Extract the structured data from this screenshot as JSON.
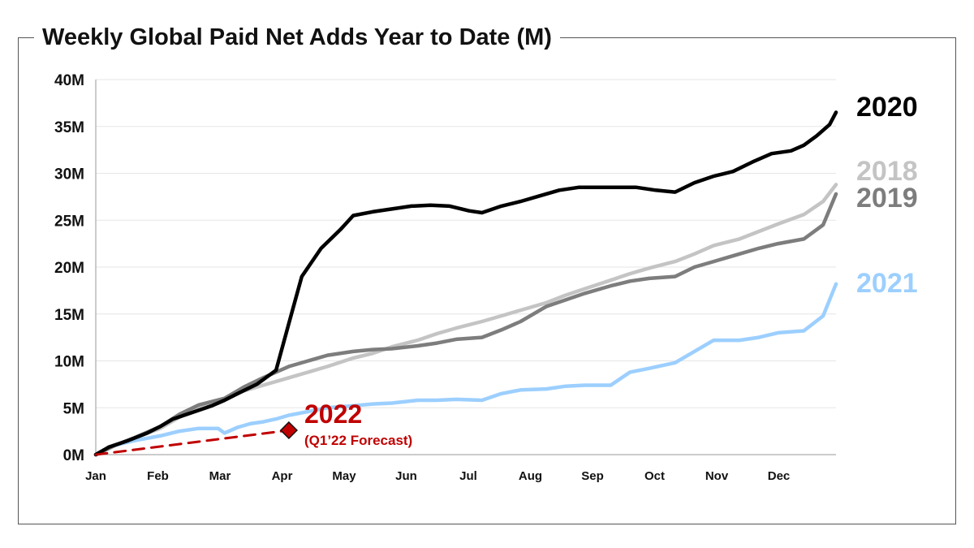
{
  "chart_data": {
    "type": "line",
    "title": "Weekly Global Paid Net Adds Year to Date (M)",
    "xlabel": "",
    "ylabel": "",
    "x_categories": [
      "Jan",
      "Feb",
      "Mar",
      "Apr",
      "May",
      "Jun",
      "Jul",
      "Aug",
      "Sep",
      "Oct",
      "Nov",
      "Dec"
    ],
    "y_ticks": [
      "0M",
      "5M",
      "10M",
      "15M",
      "20M",
      "25M",
      "30M",
      "35M",
      "40M"
    ],
    "ylim": [
      0,
      40
    ],
    "grid": true,
    "series": [
      {
        "name": "2020",
        "color": "#000000",
        "x": [
          0,
          0.2,
          0.5,
          0.8,
          1,
          1.2,
          1.5,
          1.8,
          2,
          2.2,
          2.5,
          2.8,
          3,
          3.2,
          3.5,
          3.8,
          4,
          4.3,
          4.6,
          4.9,
          5.2,
          5.5,
          5.8,
          6,
          6.3,
          6.6,
          6.9,
          7.2,
          7.5,
          7.8,
          8.1,
          8.4,
          8.7,
          9,
          9.3,
          9.6,
          9.9,
          10.2,
          10.5,
          10.8,
          11,
          11.2,
          11.4,
          11.5
        ],
        "y": [
          0,
          0.8,
          1.5,
          2.3,
          3,
          3.8,
          4.5,
          5.2,
          5.8,
          6.5,
          7.5,
          9,
          14,
          19,
          22,
          24,
          25.5,
          25.9,
          26.2,
          26.5,
          26.6,
          26.5,
          26,
          25.8,
          26.5,
          27,
          27.6,
          28.2,
          28.5,
          28.5,
          28.5,
          28.5,
          28.2,
          28,
          29,
          29.7,
          30.2,
          31.2,
          32.1,
          32.4,
          33,
          34,
          35.2,
          36.5
        ]
      },
      {
        "name": "2018",
        "color": "#c4c4c4",
        "x": [
          0,
          0.3,
          0.6,
          1,
          1.3,
          1.6,
          2,
          2.3,
          2.6,
          3,
          3.3,
          3.6,
          4,
          4.3,
          4.6,
          5,
          5.3,
          5.6,
          6,
          6.3,
          6.6,
          7,
          7.3,
          7.6,
          8,
          8.3,
          8.6,
          9,
          9.3,
          9.6,
          10,
          10.3,
          10.6,
          11,
          11.3,
          11.5
        ],
        "y": [
          0,
          1,
          1.8,
          2.8,
          4,
          5,
          5.8,
          6.8,
          7.4,
          8.2,
          8.8,
          9.4,
          10.3,
          10.8,
          11.5,
          12.2,
          12.9,
          13.5,
          14.2,
          14.8,
          15.4,
          16.2,
          17,
          17.7,
          18.6,
          19.3,
          19.9,
          20.6,
          21.4,
          22.3,
          23,
          23.8,
          24.6,
          25.6,
          27,
          28.8
        ]
      },
      {
        "name": "2019",
        "color": "#7d7d7d",
        "x": [
          0,
          0.3,
          0.6,
          1,
          1.3,
          1.6,
          2,
          2.3,
          2.6,
          3,
          3.3,
          3.6,
          4,
          4.3,
          4.6,
          5,
          5.3,
          5.6,
          6,
          6.3,
          6.6,
          7,
          7.3,
          7.6,
          8,
          8.3,
          8.6,
          9,
          9.3,
          9.6,
          10,
          10.3,
          10.6,
          11,
          11.3,
          11.5
        ],
        "y": [
          0,
          1,
          1.8,
          3,
          4.3,
          5.3,
          6,
          7.2,
          8.2,
          9.4,
          10,
          10.6,
          11,
          11.2,
          11.3,
          11.6,
          11.9,
          12.3,
          12.5,
          13.3,
          14.2,
          15.8,
          16.5,
          17.2,
          18,
          18.5,
          18.8,
          19,
          20,
          20.6,
          21.4,
          22,
          22.5,
          23,
          24.5,
          27.8
        ]
      },
      {
        "name": "2021",
        "color": "#9ccfff",
        "x": [
          0,
          0.3,
          0.6,
          1,
          1.3,
          1.6,
          1.9,
          2,
          2.2,
          2.4,
          2.6,
          2.8,
          3,
          3.3,
          3.6,
          4,
          4.3,
          4.6,
          5,
          5.3,
          5.6,
          6,
          6.3,
          6.6,
          7,
          7.3,
          7.6,
          8,
          8.3,
          8.6,
          9,
          9.3,
          9.6,
          10,
          10.3,
          10.6,
          11,
          11.3,
          11.5
        ],
        "y": [
          0,
          1,
          1.5,
          2,
          2.5,
          2.8,
          2.8,
          2.3,
          2.9,
          3.3,
          3.5,
          3.8,
          4.2,
          4.6,
          5,
          5.2,
          5.4,
          5.5,
          5.8,
          5.8,
          5.9,
          5.8,
          6.5,
          6.9,
          7,
          7.3,
          7.4,
          7.4,
          8.8,
          9.2,
          9.8,
          11,
          12.2,
          12.2,
          12.5,
          13,
          13.2,
          14.8,
          18.2
        ]
      },
      {
        "name": "2022",
        "color": "#c00000",
        "style": "dashed",
        "x": [
          0,
          3
        ],
        "y": [
          0,
          2.6
        ],
        "marker": {
          "x": 3,
          "y": 2.6,
          "shape": "diamond"
        }
      }
    ],
    "annotations": [
      {
        "series": "2020",
        "text": "2020"
      },
      {
        "series": "2018",
        "text": "2018"
      },
      {
        "series": "2019",
        "text": "2019"
      },
      {
        "series": "2021",
        "text": "2021"
      },
      {
        "series": "2022",
        "text": "2022",
        "subtext": "(Q1’22 Forecast)"
      }
    ]
  }
}
